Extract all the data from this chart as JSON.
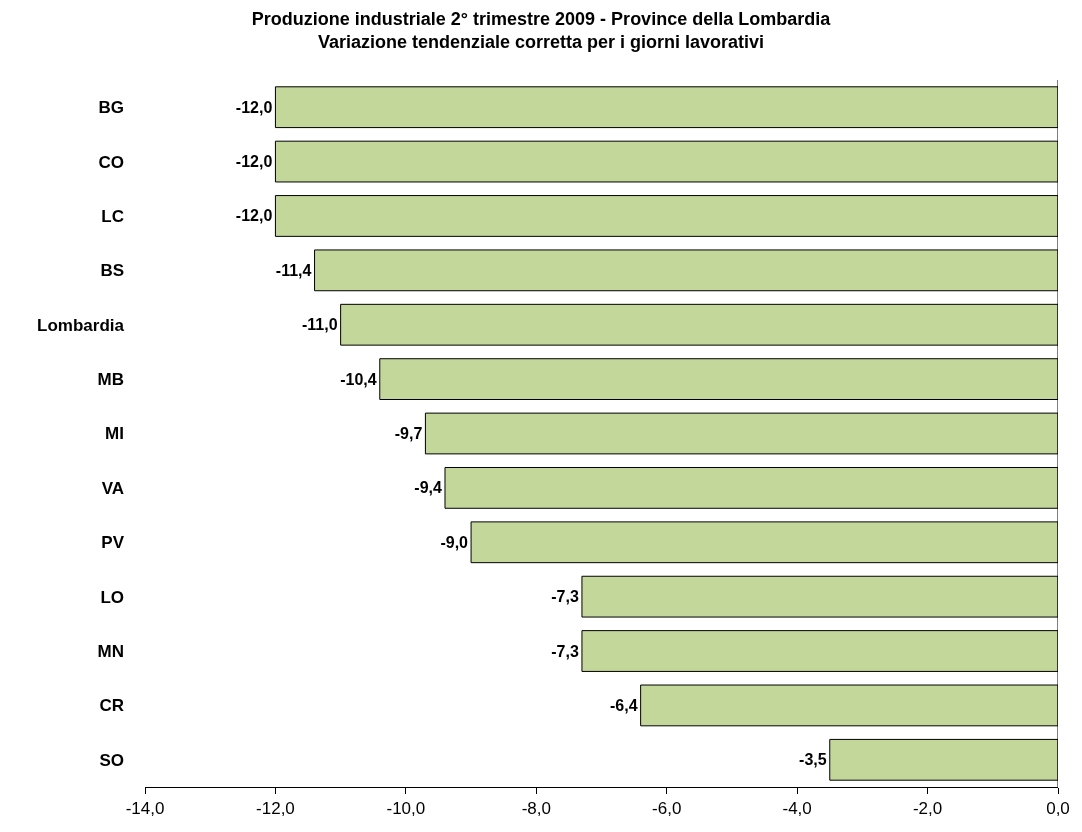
{
  "chart_data": {
    "type": "bar",
    "orientation": "horizontal",
    "title": "Produzione industriale 2° trimestre 2009 - Province della Lombardia\nVariazione tendenziale corretta per i giorni lavorativi",
    "categories": [
      "BG",
      "CO",
      "LC",
      "BS",
      "Lombardia",
      "MB",
      "MI",
      "VA",
      "PV",
      "LO",
      "MN",
      "CR",
      "SO"
    ],
    "values": [
      -12.0,
      -12.0,
      -12.0,
      -11.4,
      -11.0,
      -10.4,
      -9.7,
      -9.4,
      -9.0,
      -7.3,
      -7.3,
      -6.4,
      -3.5
    ],
    "value_labels": [
      "-12,0",
      "-12,0",
      "-12,0",
      "-11,4",
      "-11,0",
      "-10,4",
      "-9,7",
      "-9,4",
      "-9,0",
      "-7,3",
      "-7,3",
      "-6,4",
      "-3,5"
    ],
    "color": "#c4d79b",
    "xlim": [
      -14,
      0
    ],
    "xticks": [
      {
        "value": -14,
        "label": "-14,0"
      },
      {
        "value": -12,
        "label": "-12,0"
      },
      {
        "value": -10,
        "label": "-10,0"
      },
      {
        "value": -8,
        "label": "-8,0"
      },
      {
        "value": -6,
        "label": "-6,0"
      },
      {
        "value": -4,
        "label": "-4,0"
      },
      {
        "value": -2,
        "label": "-2,0"
      },
      {
        "value": 0,
        "label": "0,0"
      }
    ],
    "grid": false
  }
}
